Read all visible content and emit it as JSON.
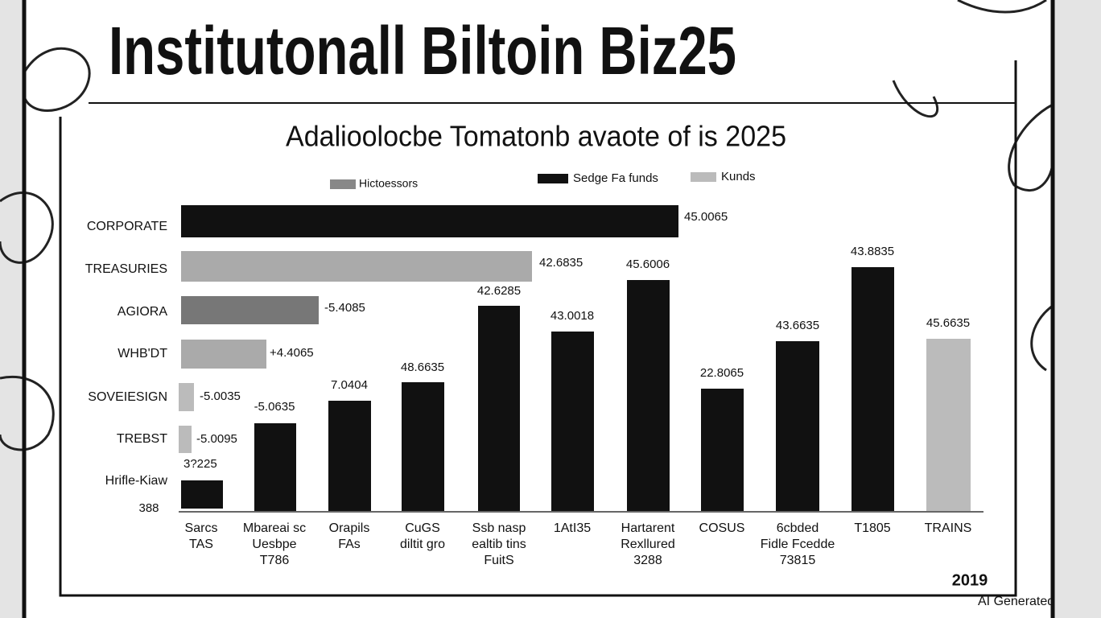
{
  "header": {
    "title": "Institutonall Biltoin Biz25",
    "subtitle": "Adalioolocbe Tomatonb avaote of is 2025"
  },
  "legend": [
    "Hictoessors",
    "Sedge Fa funds",
    "Kunds"
  ],
  "rows": [
    {
      "label": "CORPORATE",
      "value_label": "45.0065"
    },
    {
      "label": "TREASURIES",
      "value_label": "42.6835"
    },
    {
      "label": "AGIORA",
      "value_label": "-5.4085"
    },
    {
      "label": "WHB'DT",
      "value_label": "+4.4065"
    },
    {
      "label": "SOVEIESIGN",
      "value_label": "-5.0035"
    },
    {
      "label": "TREBST",
      "value_label": "-5.0095"
    },
    {
      "label": "Hrifle-Kiaw",
      "value_label": "3?225"
    }
  ],
  "axis_note": "388",
  "columns": [
    {
      "lines": [
        "Sarcs",
        "TAS"
      ]
    },
    {
      "lines": [
        "Mbareai sc",
        "Uesbpe",
        "T786"
      ],
      "value_label": "-5.0635"
    },
    {
      "lines": [
        "Orapils",
        "FAs"
      ],
      "value_label": "7.0404"
    },
    {
      "lines": [
        "CuGS",
        "diltit gro"
      ],
      "value_label": "48.6635"
    },
    {
      "lines": [
        "Ssb nasp",
        "ealtib tins",
        "FuitS"
      ],
      "value_label": "42.6285"
    },
    {
      "lines": [
        "1AtI35"
      ],
      "value_label": "43.0018"
    },
    {
      "lines": [
        "Hartarent",
        "Rexllured",
        "3288"
      ],
      "value_label": "45.6006"
    },
    {
      "lines": [
        "COSUS"
      ],
      "value_label": "22.8065"
    },
    {
      "lines": [
        "6cbded",
        "Fidle Fcedde",
        "73815"
      ],
      "value_label": "43.6635"
    },
    {
      "lines": [
        "T1805"
      ],
      "value_label": "43.8835"
    },
    {
      "lines": [
        "TRAINS"
      ],
      "value_label": "45.6635"
    }
  ],
  "footer": {
    "badge": "2019",
    "watermark": "AI Generated"
  }
}
